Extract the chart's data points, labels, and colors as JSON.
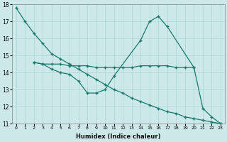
{
  "xlabel": "Humidex (Indice chaleur)",
  "color": "#1a7a6e",
  "bg_color": "#cce8e8",
  "grid_color": "#aad4d4",
  "ylim": [
    11,
    18
  ],
  "yticks": [
    11,
    12,
    13,
    14,
    15,
    16,
    17,
    18
  ],
  "xlim": [
    -0.5,
    23.5
  ],
  "line1_x": [
    0,
    1,
    2,
    3,
    4,
    5,
    6,
    7,
    8,
    9,
    10,
    11,
    12,
    13,
    14,
    15,
    16,
    17,
    18,
    19,
    20,
    21,
    22,
    23
  ],
  "line1_y": [
    17.8,
    17.0,
    16.3,
    15.7,
    15.1,
    14.8,
    14.5,
    14.2,
    13.9,
    13.6,
    13.3,
    13.0,
    12.8,
    12.5,
    12.3,
    12.1,
    11.9,
    11.7,
    11.6,
    11.4,
    11.3,
    11.2,
    11.1,
    11.0
  ],
  "line2_x": [
    2,
    3,
    4,
    5,
    6,
    7,
    8,
    9,
    10,
    11,
    12,
    13,
    14,
    15,
    16,
    17,
    18,
    19,
    20
  ],
  "line2_y": [
    14.6,
    14.5,
    14.5,
    14.5,
    14.4,
    14.4,
    14.4,
    14.3,
    14.3,
    14.3,
    14.3,
    14.3,
    14.4,
    14.4,
    14.4,
    14.4,
    14.3,
    14.3,
    14.3
  ],
  "line3_x": [
    2,
    3,
    4,
    5,
    6,
    7,
    8,
    9,
    10,
    11,
    14,
    15,
    16,
    17,
    20,
    21,
    22,
    23
  ],
  "line3_y": [
    14.6,
    14.5,
    14.2,
    14.0,
    13.9,
    13.5,
    12.8,
    12.8,
    13.0,
    13.8,
    15.9,
    17.0,
    17.3,
    16.7,
    14.3,
    11.9,
    11.4,
    11.0
  ]
}
